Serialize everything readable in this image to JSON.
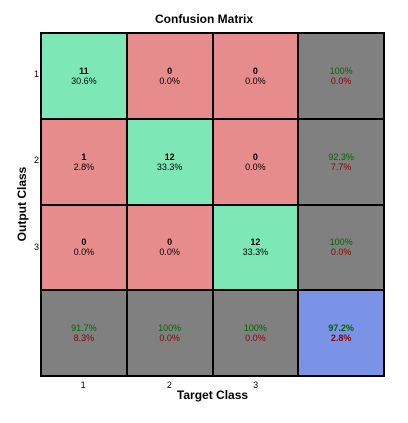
{
  "chart_data": {
    "type": "heatmap",
    "title": "Confusion Matrix",
    "xlabel": "Target Class",
    "ylabel": "Output Class",
    "row_labels": [
      "1",
      "2",
      "3"
    ],
    "col_labels": [
      "1",
      "2",
      "3"
    ],
    "counts": [
      [
        11,
        0,
        0
      ],
      [
        1,
        12,
        0
      ],
      [
        0,
        0,
        12
      ]
    ],
    "percents": [
      [
        "30.6%",
        "0.0%",
        "0.0%"
      ],
      [
        "2.8%",
        "33.3%",
        "0.0%"
      ],
      [
        "0.0%",
        "0.0%",
        "33.3%"
      ]
    ],
    "row_summary": [
      [
        "100%",
        "0.0%"
      ],
      [
        "92.3%",
        "7.7%"
      ],
      [
        "100%",
        "0.0%"
      ]
    ],
    "col_summary": [
      [
        "91.7%",
        "8.3%"
      ],
      [
        "100%",
        "0.0%"
      ],
      [
        "100%",
        "0.0%"
      ]
    ],
    "overall": [
      "97.2%",
      "2.8%"
    ],
    "colors": {
      "correct": "#7de8b6",
      "incorrect": "#e68c8c",
      "summary": "#808080",
      "overall": "#7b93e6"
    }
  }
}
